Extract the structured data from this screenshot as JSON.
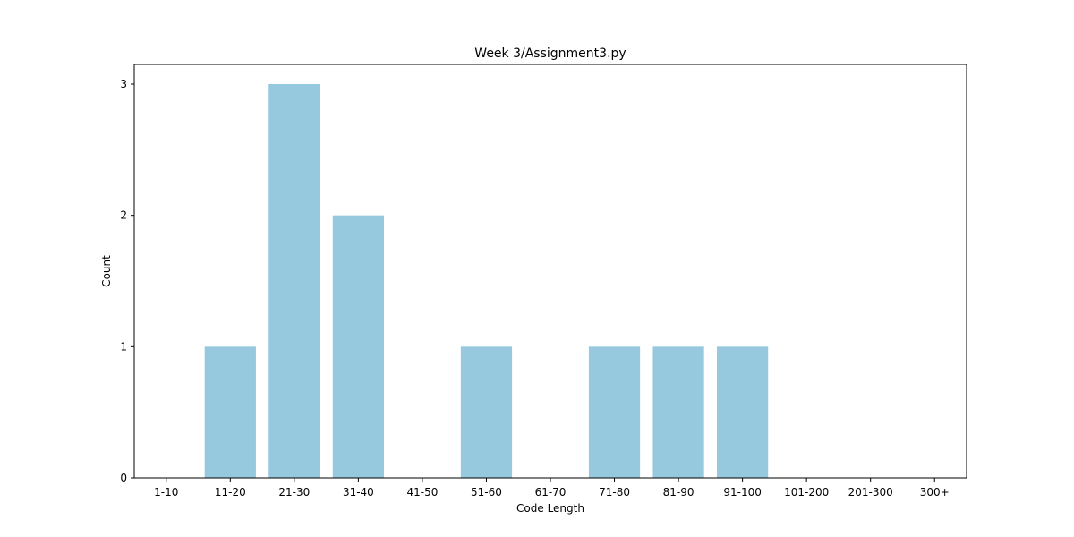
{
  "chart_data": {
    "type": "bar",
    "title": "Week 3/Assignment3.py",
    "xlabel": "Code Length",
    "ylabel": "Count",
    "categories": [
      "1-10",
      "11-20",
      "21-30",
      "31-40",
      "41-50",
      "51-60",
      "61-70",
      "71-80",
      "81-90",
      "91-100",
      "101-200",
      "201-300",
      "300+"
    ],
    "values": [
      0,
      1,
      3,
      2,
      0,
      1,
      0,
      1,
      1,
      1,
      0,
      0,
      0
    ],
    "ylim": [
      0,
      3.15
    ],
    "yticks": [
      0,
      1,
      2,
      3
    ],
    "bar_color": "#96c9de",
    "grid": false,
    "legend": "none"
  }
}
